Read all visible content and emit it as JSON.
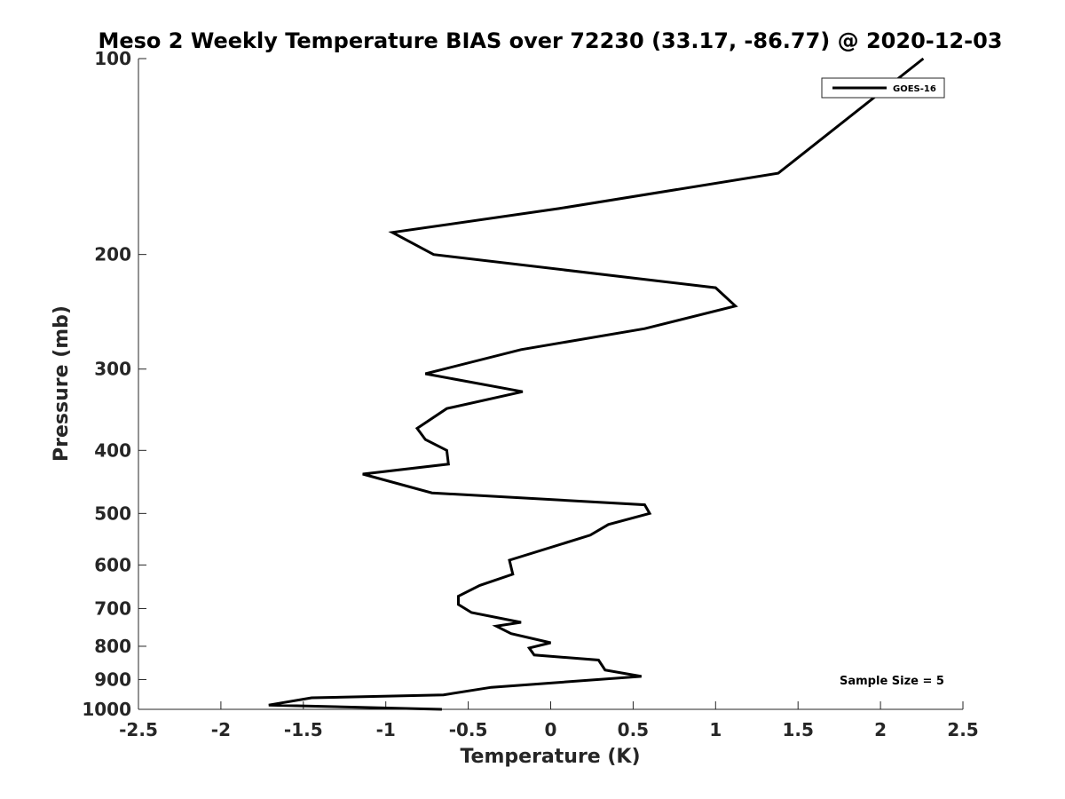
{
  "chart_data": {
    "type": "line",
    "title": "Meso 2 Weekly Temperature BIAS over 72230 (33.17, -86.77) @ 2020-12-03",
    "xlabel": "Temperature (K)",
    "ylabel": "Pressure (mb)",
    "xlim": [
      -2.5,
      2.5
    ],
    "ylim": [
      100,
      1000
    ],
    "y_scale": "log",
    "y_reversed": true,
    "x_ticks": [
      -2.5,
      -2,
      -1.5,
      -1,
      -0.5,
      0,
      0.5,
      1,
      1.5,
      2,
      2.5
    ],
    "x_tick_labels": [
      "-2.5",
      "-2",
      "-1.5",
      "-1",
      "-0.5",
      "0",
      "0.5",
      "1",
      "1.5",
      "2",
      "2.5"
    ],
    "y_ticks": [
      100,
      200,
      300,
      400,
      500,
      600,
      700,
      800,
      900,
      1000
    ],
    "y_tick_labels": [
      "100",
      "200",
      "300",
      "400",
      "500",
      "600",
      "700",
      "800",
      "900",
      "1000"
    ],
    "grid": false,
    "legend_position": "top-right",
    "annotation": "Sample Size = 5",
    "series": [
      {
        "name": "GOES-16",
        "color": "#000000",
        "points": [
          [
            2.26,
            100
          ],
          [
            1.38,
            150
          ],
          [
            0.05,
            170
          ],
          [
            -0.96,
            185
          ],
          [
            -0.71,
            200
          ],
          [
            1.0,
            225
          ],
          [
            1.12,
            240
          ],
          [
            0.57,
            260
          ],
          [
            -0.18,
            280
          ],
          [
            -0.76,
            305
          ],
          [
            -0.17,
            325
          ],
          [
            -0.63,
            345
          ],
          [
            -0.81,
            370
          ],
          [
            -0.76,
            385
          ],
          [
            -0.63,
            400
          ],
          [
            -0.62,
            420
          ],
          [
            -1.14,
            435
          ],
          [
            -0.72,
            465
          ],
          [
            0.57,
            485
          ],
          [
            0.6,
            500
          ],
          [
            0.35,
            520
          ],
          [
            0.24,
            540
          ],
          [
            -0.25,
            590
          ],
          [
            -0.23,
            620
          ],
          [
            -0.43,
            645
          ],
          [
            -0.56,
            670
          ],
          [
            -0.56,
            690
          ],
          [
            -0.48,
            710
          ],
          [
            -0.18,
            735
          ],
          [
            -0.33,
            745
          ],
          [
            -0.24,
            765
          ],
          [
            0.0,
            790
          ],
          [
            -0.13,
            805
          ],
          [
            -0.1,
            825
          ],
          [
            0.29,
            840
          ],
          [
            0.33,
            870
          ],
          [
            0.55,
            890
          ],
          [
            -0.36,
            925
          ],
          [
            -0.65,
            950
          ],
          [
            -1.45,
            960
          ],
          [
            -1.71,
            985
          ],
          [
            -0.66,
            1000
          ]
        ]
      }
    ]
  }
}
